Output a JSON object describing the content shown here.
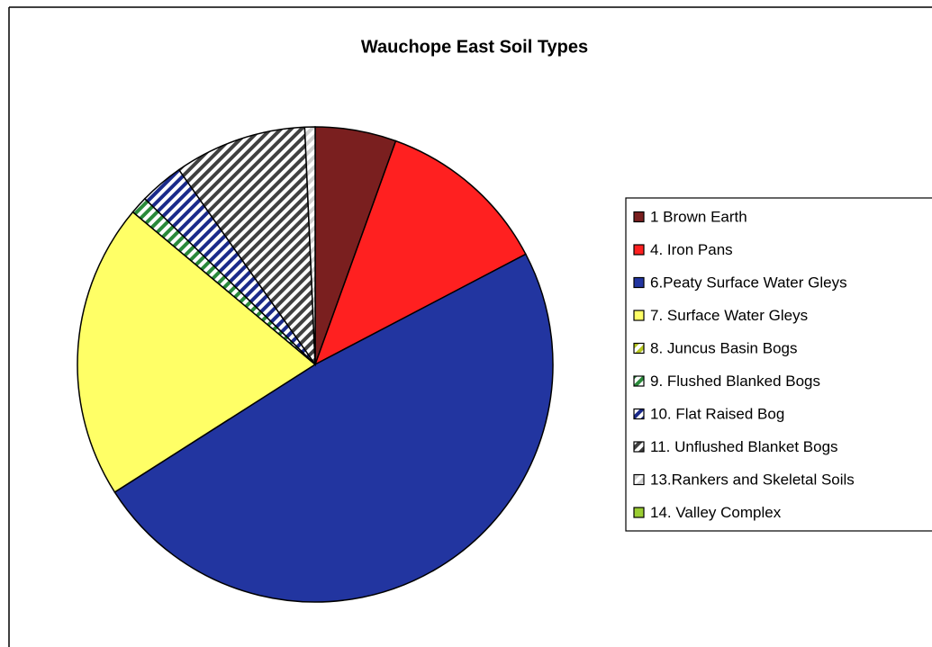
{
  "chart_data": {
    "type": "pie",
    "title": "Wauchope East Soil Types",
    "categories": [
      "1 Brown Earth",
      "4. Iron Pans",
      "6.Peaty Surface Water Gleys",
      "7. Surface Water Gleys",
      "8. Juncus Basin Bogs",
      "9. Flushed Blanked Bogs",
      "10. Flat Raised Bog",
      "11. Unflushed Blanket Bogs",
      "13.Rankers and Skeletal Soils",
      "14. Valley Complex"
    ],
    "values": [
      5.5,
      11.8,
      48.6,
      20.1,
      0,
      1.2,
      3.0,
      9.0,
      0.7,
      0
    ],
    "colors": [
      "#7a1f1f",
      "#ff2020",
      "#2235a0",
      "#ffff66",
      "#b8c820",
      "#2a8a3a",
      "#1a2a8a",
      "#404040",
      "#cfcfcf",
      "#9acd32"
    ],
    "patterns": [
      "solid",
      "solid",
      "solid",
      "solid",
      "stripe",
      "stripe",
      "stripe",
      "stripe",
      "stripe",
      "solid"
    ],
    "legend": "right"
  }
}
